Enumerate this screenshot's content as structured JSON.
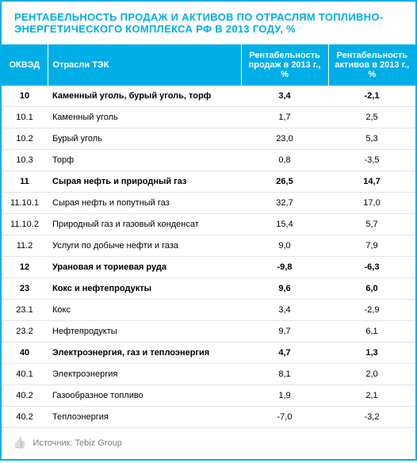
{
  "title": "РЕНТАБЕЛЬНОСТЬ ПРОДАЖ И АКТИВОВ ПО ОТРАСЛЯМ ТОПЛИВНО-ЭНЕРГЕТИЧЕСКОГО КОМПЛЕКСА РФ В 2013 ГОДУ, %",
  "title_color": "#00aee7",
  "title_fontsize": 13,
  "table": {
    "type": "table",
    "header_bg": "#00aee7",
    "header_text_color": "#ffffff",
    "row_border_color": "#e3e3e3",
    "body_fontsize": 11,
    "columns": [
      {
        "key": "code",
        "label": "ОКВЭД",
        "align": "center",
        "width": 58
      },
      {
        "key": "name",
        "label": "Отрасли ТЭК",
        "align": "left"
      },
      {
        "key": "sales",
        "label": "Рентабельность продаж в 2013 г., %",
        "align": "center",
        "width": 110
      },
      {
        "key": "assets",
        "label": "Рентабельность активов в 2013 г., %",
        "align": "center",
        "width": 110
      }
    ],
    "rows": [
      {
        "code": "10",
        "name": "Каменный уголь, бурый уголь, торф",
        "sales": "3,4",
        "assets": "-2,1",
        "group": true
      },
      {
        "code": "10.1",
        "name": "Каменный уголь",
        "sales": "1,7",
        "assets": "2,5",
        "group": false
      },
      {
        "code": "10.2",
        "name": "Бурый уголь",
        "sales": "23,0",
        "assets": "5,3",
        "group": false
      },
      {
        "code": "10.3",
        "name": "Торф",
        "sales": "0,8",
        "assets": "-3,5",
        "group": false
      },
      {
        "code": "11",
        "name": "Сырая нефть и природный газ",
        "sales": "26,5",
        "assets": "14,7",
        "group": true
      },
      {
        "code": "11.10.1",
        "name": "Сырая нефть и попутный газ",
        "sales": "32,7",
        "assets": "17,0",
        "group": false
      },
      {
        "code": "11.10.2",
        "name": "Природный газ и газовый конденсат",
        "sales": "15,4",
        "assets": "5,7",
        "group": false
      },
      {
        "code": "11.2",
        "name": "Услуги по добыче нефти и газа",
        "sales": "9,0",
        "assets": "7,9",
        "group": false
      },
      {
        "code": "12",
        "name": "Урановая и ториевая руда",
        "sales": "-9,8",
        "assets": "-6,3",
        "group": true
      },
      {
        "code": "23",
        "name": "Кокс и нефтепродукты",
        "sales": "9,6",
        "assets": "6,0",
        "group": true
      },
      {
        "code": "23.1",
        "name": "Кокс",
        "sales": "3,4",
        "assets": "-2,9",
        "group": false
      },
      {
        "code": "23.2",
        "name": "Нефтепродукты",
        "sales": "9,7",
        "assets": "6,1",
        "group": false
      },
      {
        "code": "40",
        "name": "Электроэнергия, газ и теплоэнергия",
        "sales": "4,7",
        "assets": "1,3",
        "group": true
      },
      {
        "code": "40.1",
        "name": "Электроэнергия",
        "sales": "8,1",
        "assets": "2,0",
        "group": false
      },
      {
        "code": "40.2",
        "name": "Газообразное топливо",
        "sales": "1,9",
        "assets": "2,1",
        "group": false
      },
      {
        "code": "40.2",
        "name": "Теплоэнергия",
        "sales": "-7,0",
        "assets": "-3,2",
        "group": false
      }
    ]
  },
  "footer": {
    "icon": "thumb-up-icon",
    "icon_glyph": "👍",
    "text": "Источник: Tebiz Group",
    "text_color": "#7d7d7d",
    "fontsize": 11
  }
}
